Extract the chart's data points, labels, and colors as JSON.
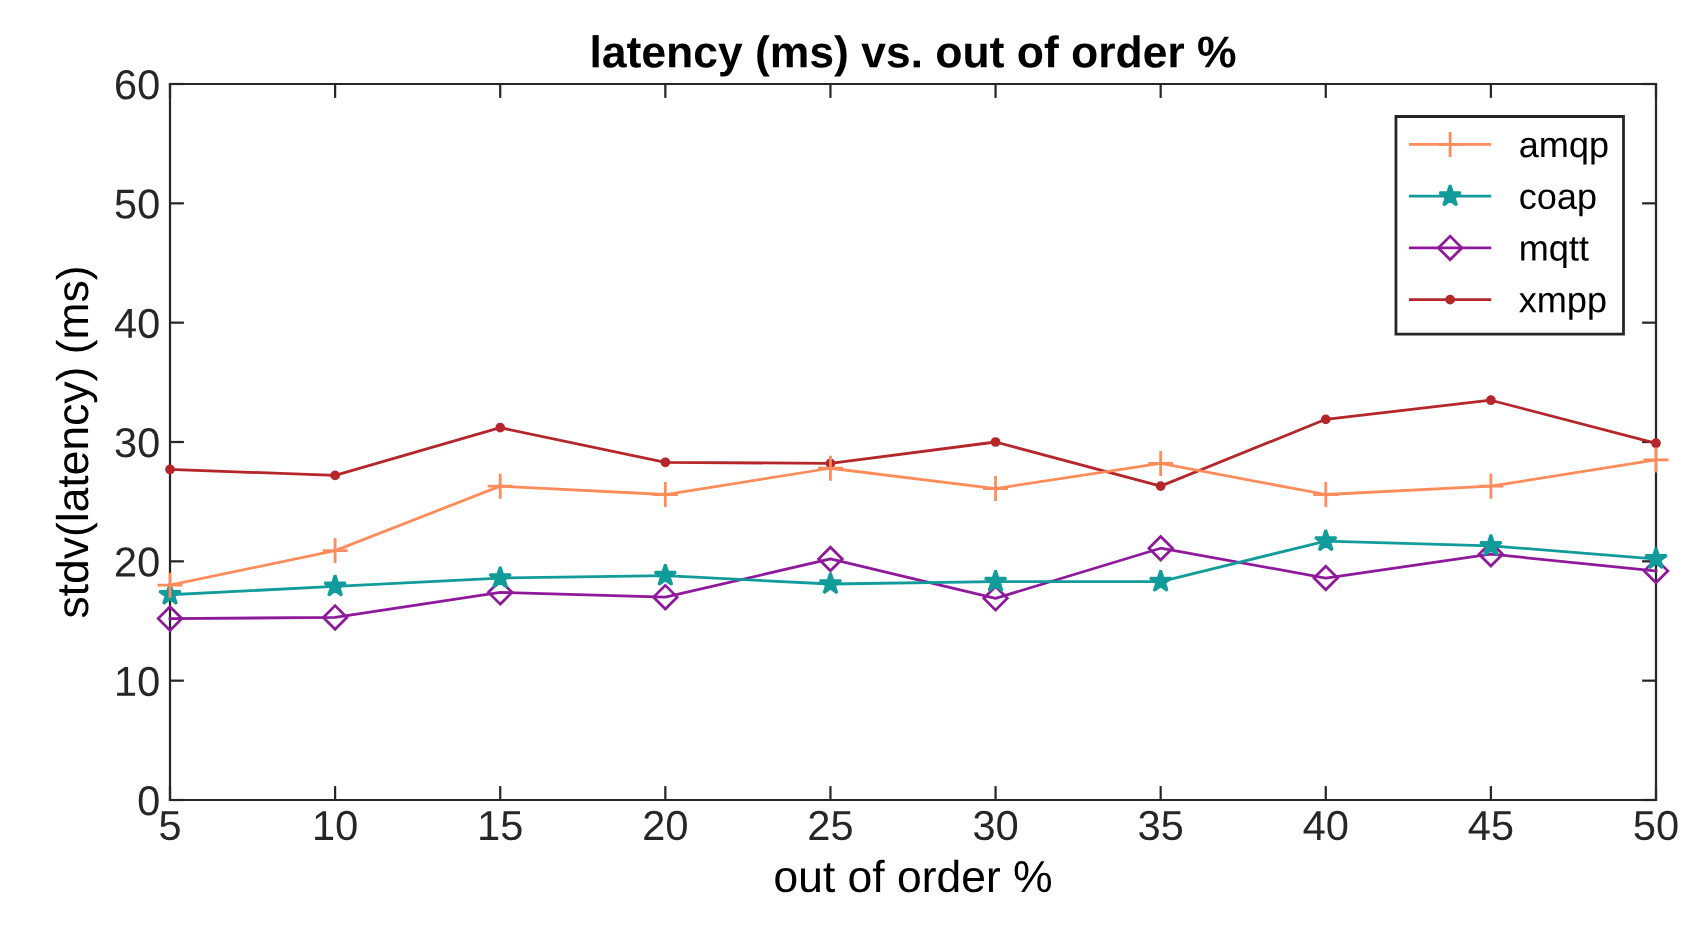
{
  "chart_data": {
    "type": "line",
    "title": "latency (ms) vs. out of order %",
    "xlabel": "out of order %",
    "ylabel": "stdv(latency) (ms)",
    "x": [
      5,
      10,
      15,
      20,
      25,
      30,
      35,
      40,
      45,
      50
    ],
    "series": [
      {
        "name": "amqp",
        "color": "#ff8c5a",
        "marker": "cross",
        "values": [
          18.0,
          20.9,
          26.3,
          25.6,
          27.8,
          26.1,
          28.2,
          25.6,
          26.3,
          28.5
        ]
      },
      {
        "name": "coap",
        "color": "#119b9b",
        "marker": "star",
        "values": [
          17.2,
          17.9,
          18.6,
          18.8,
          18.1,
          18.3,
          18.3,
          21.7,
          21.3,
          20.2
        ]
      },
      {
        "name": "mqtt",
        "color": "#8e1a9b",
        "marker": "diamond",
        "values": [
          15.2,
          15.3,
          17.4,
          17.0,
          20.2,
          16.9,
          21.1,
          18.6,
          20.6,
          19.2
        ]
      },
      {
        "name": "xmpp",
        "color": "#b5262a",
        "marker": "circle",
        "values": [
          27.7,
          27.2,
          31.2,
          28.3,
          28.2,
          30.0,
          26.3,
          31.9,
          33.5,
          29.9
        ]
      }
    ],
    "xlim": [
      5,
      50
    ],
    "ylim": [
      0,
      60
    ],
    "xticks": [
      5,
      10,
      15,
      20,
      25,
      30,
      35,
      40,
      45,
      50
    ],
    "yticks": [
      0,
      10,
      20,
      30,
      40,
      50,
      60
    ],
    "grid": false,
    "legend": "top right",
    "line_style": "solid"
  }
}
